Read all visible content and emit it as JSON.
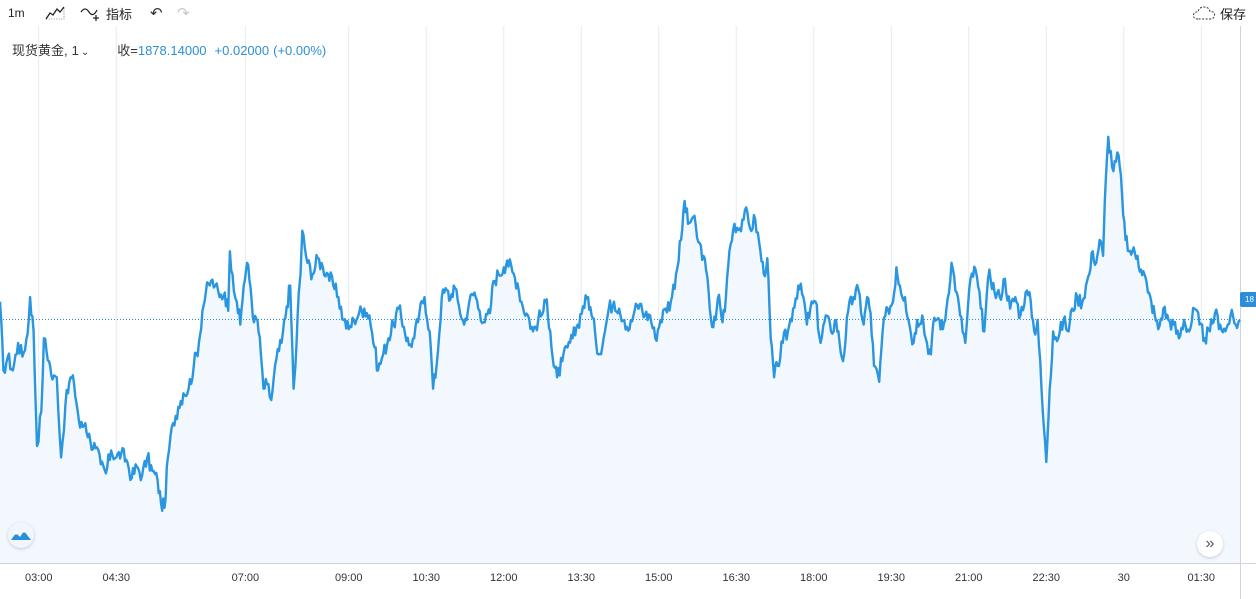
{
  "toolbar": {
    "interval_label": "1m",
    "chart_type_icon": "area-chart-icon",
    "indicators_label": "指标",
    "indicators_icon": "indicators-icon",
    "undo_icon": "undo-icon",
    "redo_icon": "redo-icon",
    "save_label": "保存",
    "save_icon": "cloud-icon"
  },
  "legend": {
    "symbol": "现货黄金,",
    "resolution": "1",
    "close_label": "收=",
    "close_value": "1878.14000",
    "change": "+0.02000",
    "change_pct": "(+0.00%)"
  },
  "price_tag": "18",
  "colors": {
    "line": "#2a96e0",
    "fill": "#f2f8fd",
    "grid": "#e6ecf2",
    "accent": "#2a8fd8",
    "axis_text": "#333333"
  },
  "chart_data": {
    "type": "area",
    "title": "现货黄金",
    "x_tick_labels": [
      "03:00",
      "04:30",
      "07:00",
      "09:00",
      "10:30",
      "12:00",
      "13:30",
      "15:00",
      "16:30",
      "18:00",
      "19:30",
      "21:00",
      "22:30",
      "30",
      "01:30"
    ],
    "x_tick_minutes": [
      180,
      270,
      420,
      540,
      630,
      720,
      810,
      900,
      990,
      1080,
      1170,
      1260,
      1350,
      1440,
      1530
    ],
    "x_range_minutes": [
      135,
      1575
    ],
    "y_range_pct": [
      -1.0,
      1.0
    ],
    "last_value": 1878.14,
    "grid": true,
    "keypoints": [
      [
        135,
        0.08
      ],
      [
        139,
        -0.22
      ],
      [
        144,
        -0.16
      ],
      [
        150,
        -0.22
      ],
      [
        156,
        -0.1
      ],
      [
        161,
        -0.16
      ],
      [
        167,
        -0.06
      ],
      [
        170,
        0.1
      ],
      [
        174,
        -0.05
      ],
      [
        178,
        -0.55
      ],
      [
        183,
        -0.4
      ],
      [
        186,
        -0.08
      ],
      [
        192,
        -0.18
      ],
      [
        196,
        -0.26
      ],
      [
        201,
        -0.25
      ],
      [
        206,
        -0.6
      ],
      [
        211,
        -0.37
      ],
      [
        217,
        -0.25
      ],
      [
        221,
        -0.28
      ],
      [
        228,
        -0.47
      ],
      [
        234,
        -0.45
      ],
      [
        240,
        -0.53
      ],
      [
        246,
        -0.56
      ],
      [
        252,
        -0.63
      ],
      [
        258,
        -0.67
      ],
      [
        264,
        -0.57
      ],
      [
        270,
        -0.6
      ],
      [
        276,
        -0.58
      ],
      [
        283,
        -0.62
      ],
      [
        288,
        -0.69
      ],
      [
        294,
        -0.64
      ],
      [
        300,
        -0.68
      ],
      [
        306,
        -0.6
      ],
      [
        312,
        -0.66
      ],
      [
        318,
        -0.7
      ],
      [
        322,
        -0.8
      ],
      [
        326,
        -0.82
      ],
      [
        330,
        -0.6
      ],
      [
        336,
        -0.45
      ],
      [
        342,
        -0.38
      ],
      [
        348,
        -0.32
      ],
      [
        354,
        -0.3
      ],
      [
        360,
        -0.2
      ],
      [
        366,
        -0.1
      ],
      [
        370,
        0.04
      ],
      [
        374,
        0.12
      ],
      [
        380,
        0.17
      ],
      [
        385,
        0.15
      ],
      [
        390,
        0.1
      ],
      [
        396,
        0.12
      ],
      [
        400,
        0.04
      ],
      [
        402,
        0.3
      ],
      [
        405,
        0.2
      ],
      [
        410,
        0.08
      ],
      [
        414,
        -0.02
      ],
      [
        418,
        0.15
      ],
      [
        422,
        0.25
      ],
      [
        426,
        0.14
      ],
      [
        430,
        -0.01
      ],
      [
        434,
        0.0
      ],
      [
        438,
        -0.15
      ],
      [
        441,
        -0.3
      ],
      [
        445,
        -0.28
      ],
      [
        450,
        -0.35
      ],
      [
        456,
        -0.17
      ],
      [
        462,
        -0.1
      ],
      [
        468,
        0.06
      ],
      [
        472,
        0.15
      ],
      [
        476,
        -0.3
      ],
      [
        478,
        -0.2
      ],
      [
        482,
        0.12
      ],
      [
        484,
        0.2
      ],
      [
        486,
        0.39
      ],
      [
        492,
        0.25
      ],
      [
        498,
        0.2
      ],
      [
        504,
        0.27
      ],
      [
        510,
        0.23
      ],
      [
        516,
        0.2
      ],
      [
        522,
        0.15
      ],
      [
        528,
        0.1
      ],
      [
        534,
        0.0
      ],
      [
        540,
        -0.04
      ],
      [
        546,
        0.0
      ],
      [
        552,
        0.03
      ],
      [
        558,
        0.05
      ],
      [
        564,
        0.02
      ],
      [
        570,
        -0.12
      ],
      [
        574,
        -0.22
      ],
      [
        580,
        -0.15
      ],
      [
        586,
        -0.08
      ],
      [
        592,
        -0.02
      ],
      [
        598,
        0.05
      ],
      [
        604,
        -0.03
      ],
      [
        610,
        -0.11
      ],
      [
        616,
        -0.08
      ],
      [
        622,
        0.03
      ],
      [
        628,
        0.1
      ],
      [
        634,
        -0.05
      ],
      [
        638,
        -0.3
      ],
      [
        642,
        -0.2
      ],
      [
        648,
        0.1
      ],
      [
        654,
        0.13
      ],
      [
        658,
        0.09
      ],
      [
        662,
        0.15
      ],
      [
        668,
        0.06
      ],
      [
        674,
        -0.02
      ],
      [
        680,
        0.08
      ],
      [
        686,
        0.12
      ],
      [
        692,
        0.04
      ],
      [
        698,
        -0.01
      ],
      [
        704,
        0.03
      ],
      [
        708,
        0.17
      ],
      [
        714,
        0.2
      ],
      [
        720,
        0.23
      ],
      [
        724,
        0.26
      ],
      [
        730,
        0.21
      ],
      [
        736,
        0.16
      ],
      [
        742,
        0.06
      ],
      [
        748,
        0.02
      ],
      [
        754,
        -0.05
      ],
      [
        760,
        0.0
      ],
      [
        766,
        0.04
      ],
      [
        770,
        0.09
      ],
      [
        774,
        -0.05
      ],
      [
        778,
        -0.2
      ],
      [
        782,
        -0.25
      ],
      [
        788,
        -0.18
      ],
      [
        794,
        -0.12
      ],
      [
        800,
        -0.08
      ],
      [
        806,
        -0.02
      ],
      [
        812,
        0.06
      ],
      [
        818,
        0.1
      ],
      [
        822,
        0.02
      ],
      [
        826,
        -0.05
      ],
      [
        830,
        -0.15
      ],
      [
        836,
        -0.08
      ],
      [
        842,
        0.05
      ],
      [
        848,
        0.08
      ],
      [
        854,
        0.05
      ],
      [
        860,
        0.0
      ],
      [
        866,
        -0.04
      ],
      [
        872,
        0.04
      ],
      [
        878,
        0.07
      ],
      [
        884,
        0.02
      ],
      [
        890,
        0.02
      ],
      [
        896,
        -0.08
      ],
      [
        902,
        0.0
      ],
      [
        908,
        0.05
      ],
      [
        914,
        0.08
      ],
      [
        920,
        0.2
      ],
      [
        926,
        0.35
      ],
      [
        930,
        0.52
      ],
      [
        934,
        0.42
      ],
      [
        940,
        0.45
      ],
      [
        946,
        0.34
      ],
      [
        952,
        0.28
      ],
      [
        958,
        0.12
      ],
      [
        962,
        -0.03
      ],
      [
        966,
        0.0
      ],
      [
        970,
        0.11
      ],
      [
        974,
        -0.01
      ],
      [
        978,
        0.1
      ],
      [
        982,
        0.3
      ],
      [
        988,
        0.42
      ],
      [
        994,
        0.4
      ],
      [
        1000,
        0.48
      ],
      [
        1006,
        0.4
      ],
      [
        1012,
        0.44
      ],
      [
        1018,
        0.3
      ],
      [
        1022,
        0.2
      ],
      [
        1026,
        0.27
      ],
      [
        1030,
        -0.08
      ],
      [
        1034,
        -0.25
      ],
      [
        1038,
        -0.2
      ],
      [
        1044,
        -0.1
      ],
      [
        1050,
        -0.05
      ],
      [
        1056,
        0.05
      ],
      [
        1062,
        0.15
      ],
      [
        1068,
        0.1
      ],
      [
        1072,
        -0.02
      ],
      [
        1076,
        0.05
      ],
      [
        1082,
        0.08
      ],
      [
        1088,
        -0.1
      ],
      [
        1094,
        0.02
      ],
      [
        1100,
        -0.05
      ],
      [
        1106,
        0.0
      ],
      [
        1110,
        -0.1
      ],
      [
        1114,
        -0.18
      ],
      [
        1120,
        0.04
      ],
      [
        1126,
        0.1
      ],
      [
        1132,
        0.13
      ],
      [
        1138,
        -0.02
      ],
      [
        1142,
        0.1
      ],
      [
        1146,
        0.03
      ],
      [
        1150,
        -0.2
      ],
      [
        1156,
        -0.27
      ],
      [
        1160,
        -0.05
      ],
      [
        1166,
        0.05
      ],
      [
        1172,
        0.08
      ],
      [
        1176,
        0.23
      ],
      [
        1180,
        0.15
      ],
      [
        1186,
        0.1
      ],
      [
        1190,
        0.0
      ],
      [
        1196,
        -0.1
      ],
      [
        1200,
        0.0
      ],
      [
        1206,
        0.02
      ],
      [
        1210,
        -0.08
      ],
      [
        1216,
        -0.15
      ],
      [
        1220,
        0.01
      ],
      [
        1226,
        0.0
      ],
      [
        1230,
        -0.04
      ],
      [
        1234,
        0.05
      ],
      [
        1240,
        0.25
      ],
      [
        1246,
        0.12
      ],
      [
        1250,
        0.02
      ],
      [
        1256,
        -0.1
      ],
      [
        1262,
        0.18
      ],
      [
        1268,
        0.22
      ],
      [
        1274,
        0.05
      ],
      [
        1278,
        -0.05
      ],
      [
        1284,
        0.22
      ],
      [
        1290,
        0.12
      ],
      [
        1296,
        0.1
      ],
      [
        1302,
        0.18
      ],
      [
        1308,
        0.05
      ],
      [
        1314,
        0.1
      ],
      [
        1320,
        0.02
      ],
      [
        1326,
        0.12
      ],
      [
        1332,
        0.08
      ],
      [
        1336,
        -0.05
      ],
      [
        1340,
        0.0
      ],
      [
        1346,
        -0.4
      ],
      [
        1350,
        -0.62
      ],
      [
        1354,
        -0.3
      ],
      [
        1358,
        -0.05
      ],
      [
        1364,
        -0.08
      ],
      [
        1370,
        0.0
      ],
      [
        1376,
        -0.05
      ],
      [
        1380,
        0.05
      ],
      [
        1386,
        0.1
      ],
      [
        1392,
        0.08
      ],
      [
        1396,
        0.15
      ],
      [
        1400,
        0.2
      ],
      [
        1404,
        0.3
      ],
      [
        1408,
        0.25
      ],
      [
        1412,
        0.35
      ],
      [
        1416,
        0.28
      ],
      [
        1418,
        0.52
      ],
      [
        1422,
        0.8
      ],
      [
        1428,
        0.65
      ],
      [
        1434,
        0.72
      ],
      [
        1438,
        0.55
      ],
      [
        1442,
        0.35
      ],
      [
        1446,
        0.3
      ],
      [
        1450,
        0.3
      ],
      [
        1456,
        0.28
      ],
      [
        1460,
        0.22
      ],
      [
        1464,
        0.2
      ],
      [
        1468,
        0.12
      ],
      [
        1472,
        0.08
      ],
      [
        1476,
        0.02
      ],
      [
        1480,
        -0.04
      ],
      [
        1486,
        0.05
      ],
      [
        1492,
        0.0
      ],
      [
        1498,
        -0.02
      ],
      [
        1504,
        -0.08
      ],
      [
        1510,
        0.0
      ],
      [
        1516,
        -0.05
      ],
      [
        1522,
        0.05
      ],
      [
        1528,
        -0.02
      ],
      [
        1534,
        -0.08
      ],
      [
        1540,
        -0.05
      ],
      [
        1546,
        0.03
      ],
      [
        1552,
        -0.02
      ],
      [
        1558,
        -0.05
      ],
      [
        1564,
        0.02
      ],
      [
        1570,
        -0.02
      ],
      [
        1575,
        0.0
      ]
    ]
  },
  "buttons": {
    "logo_icon": "tradingview-logo-icon",
    "scroll_icon": "chevron-double-right-icon",
    "scroll_glyph": "»"
  }
}
